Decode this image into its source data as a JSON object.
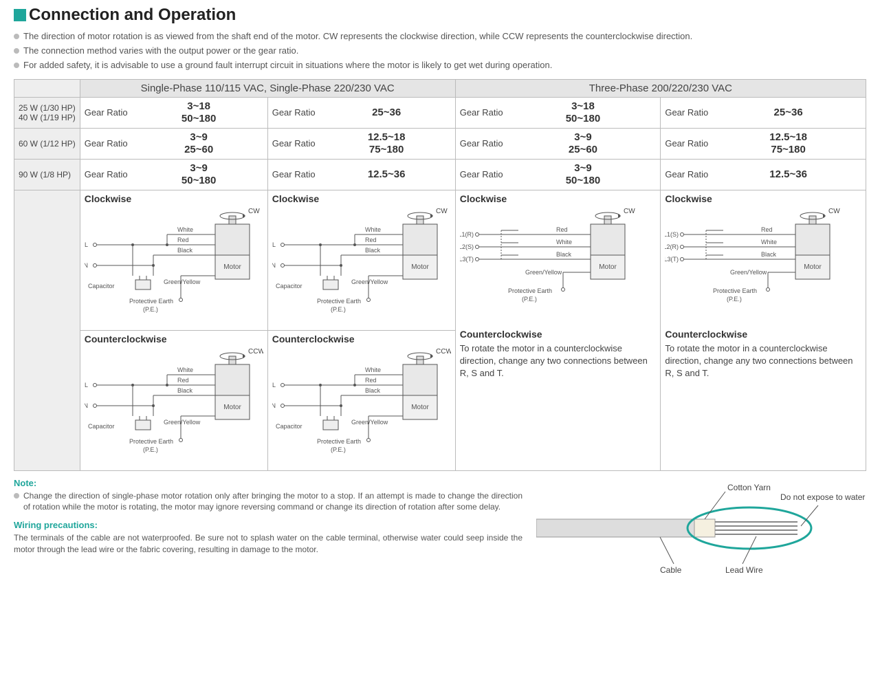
{
  "title": "Connection and Operation",
  "bullets": [
    "The direction of motor rotation is as viewed from the shaft end of the motor. CW represents the clockwise direction, while CCW represents the counterclockwise direction.",
    "The connection method varies with the output power or the gear ratio.",
    "For added safety, it is advisable to use a ground fault interrupt circuit in situations where the motor is likely to get wet during operation."
  ],
  "headers": {
    "single": "Single-Phase 110/115 VAC, Single-Phase 220/230 VAC",
    "three": "Three-Phase 200/220/230 VAC"
  },
  "rowLabels": {
    "r1a": "25 W (1/30 HP)",
    "r1b": "40 W (1/19 HP)",
    "r2": "60 W (1/12 HP)",
    "r3": "90 W (1/8 HP)"
  },
  "grLabel": "Gear Ratio",
  "gearRatios": {
    "r1c1": "3~18\n50~180",
    "r1c2": "25~36",
    "r1c3": "3~18\n50~180",
    "r1c4": "25~36",
    "r2c1": "3~9\n25~60",
    "r2c2": "12.5~18\n75~180",
    "r2c3": "3~9\n25~60",
    "r2c4": "12.5~18\n75~180",
    "r3c1": "3~9\n50~180",
    "r3c2": "12.5~36",
    "r3c3": "3~9\n50~180",
    "r3c4": "12.5~36"
  },
  "diagLabels": {
    "cw": "Clockwise",
    "ccw": "Counterclockwise",
    "cwArrow": "CW",
    "ccwArrow": "CCW",
    "L": "L",
    "N": "N",
    "L1": "L1(R)",
    "L2": "L2(S)",
    "L3": "L3(T)",
    "L1b": "L1(S)",
    "L2b": "L2(R)",
    "L3b": "L3(T)",
    "white": "White",
    "red": "Red",
    "black": "Black",
    "cap": "Capacitor",
    "gy": "Green/Yellow",
    "pe": "Protective Earth",
    "peAbbr": "(P.E.)",
    "motor": "Motor"
  },
  "ccwNote": {
    "title": "Counterclockwise",
    "body": "To rotate the motor in a counterclockwise direction, change any two connections between R, S and T."
  },
  "note": {
    "header": "Note:",
    "text": "Change the direction of single-phase motor rotation only after bringing the motor to a stop. If an attempt is made to change the direction of rotation while the motor is rotating, the motor may ignore reversing command or change its direction of rotation after some delay."
  },
  "wiring": {
    "header": "Wiring precautions:",
    "text": "The terminals of the cable are not waterproofed. Be sure not to splash water on the cable terminal, otherwise water could seep inside the motor through the lead wire or the fabric covering, resulting in damage to the motor."
  },
  "cableLabels": {
    "cotton": "Cotton Yarn",
    "expose": "Do not expose to water",
    "cable": "Cable",
    "lead": "Lead Wire"
  },
  "colors": {
    "accent": "#1fa69b",
    "border": "#bbbbbb",
    "headerBg": "#e5e5e5",
    "text": "#333333",
    "muted": "#555555",
    "motorFill": "#e8e8e8",
    "motorStroke": "#555555"
  }
}
